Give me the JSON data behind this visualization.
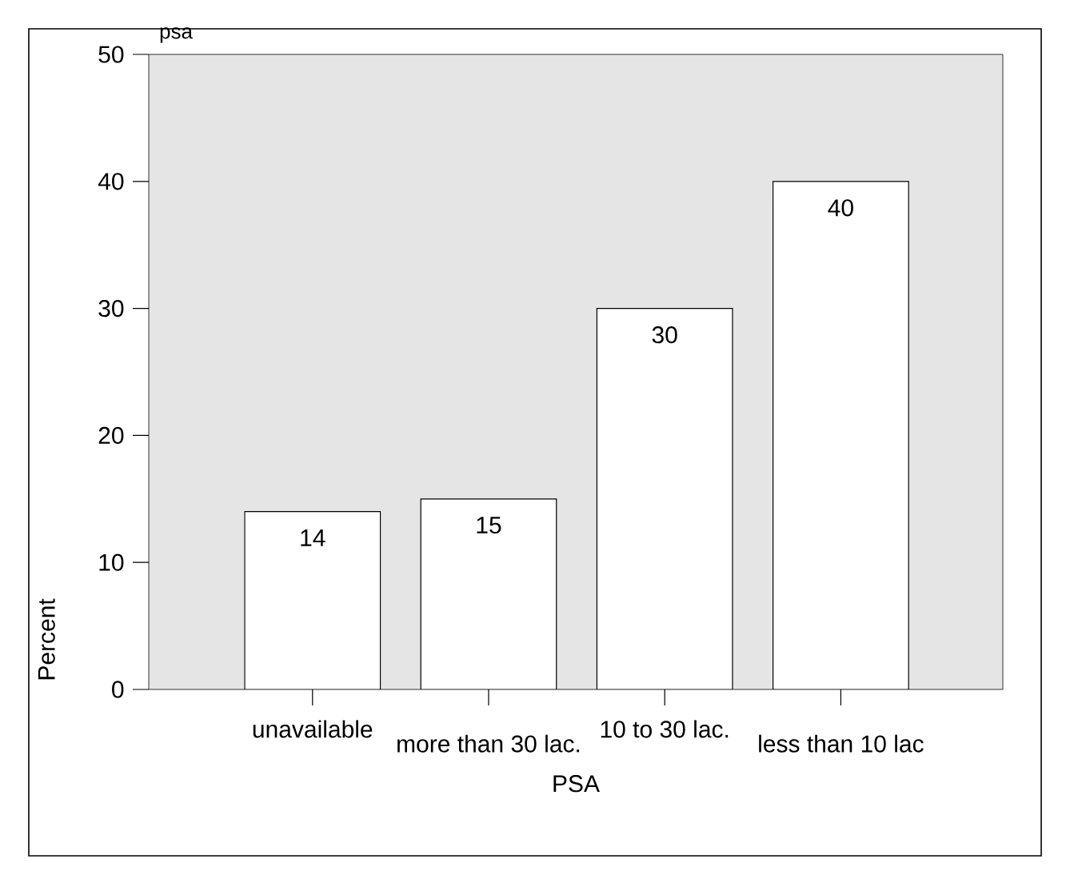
{
  "chart_data": {
    "type": "bar",
    "title": "psa",
    "xlabel": "PSA",
    "ylabel": "Percent",
    "categories": [
      "unavailable",
      "more than 30 lac.",
      "10 to  30 lac.",
      "less than 10 lac"
    ],
    "values": [
      14,
      15,
      30,
      40
    ],
    "color": "#ffffff",
    "ylim": [
      0,
      50
    ],
    "yticks": [
      0,
      10,
      20,
      30,
      40,
      50
    ],
    "data_labels": true
  }
}
